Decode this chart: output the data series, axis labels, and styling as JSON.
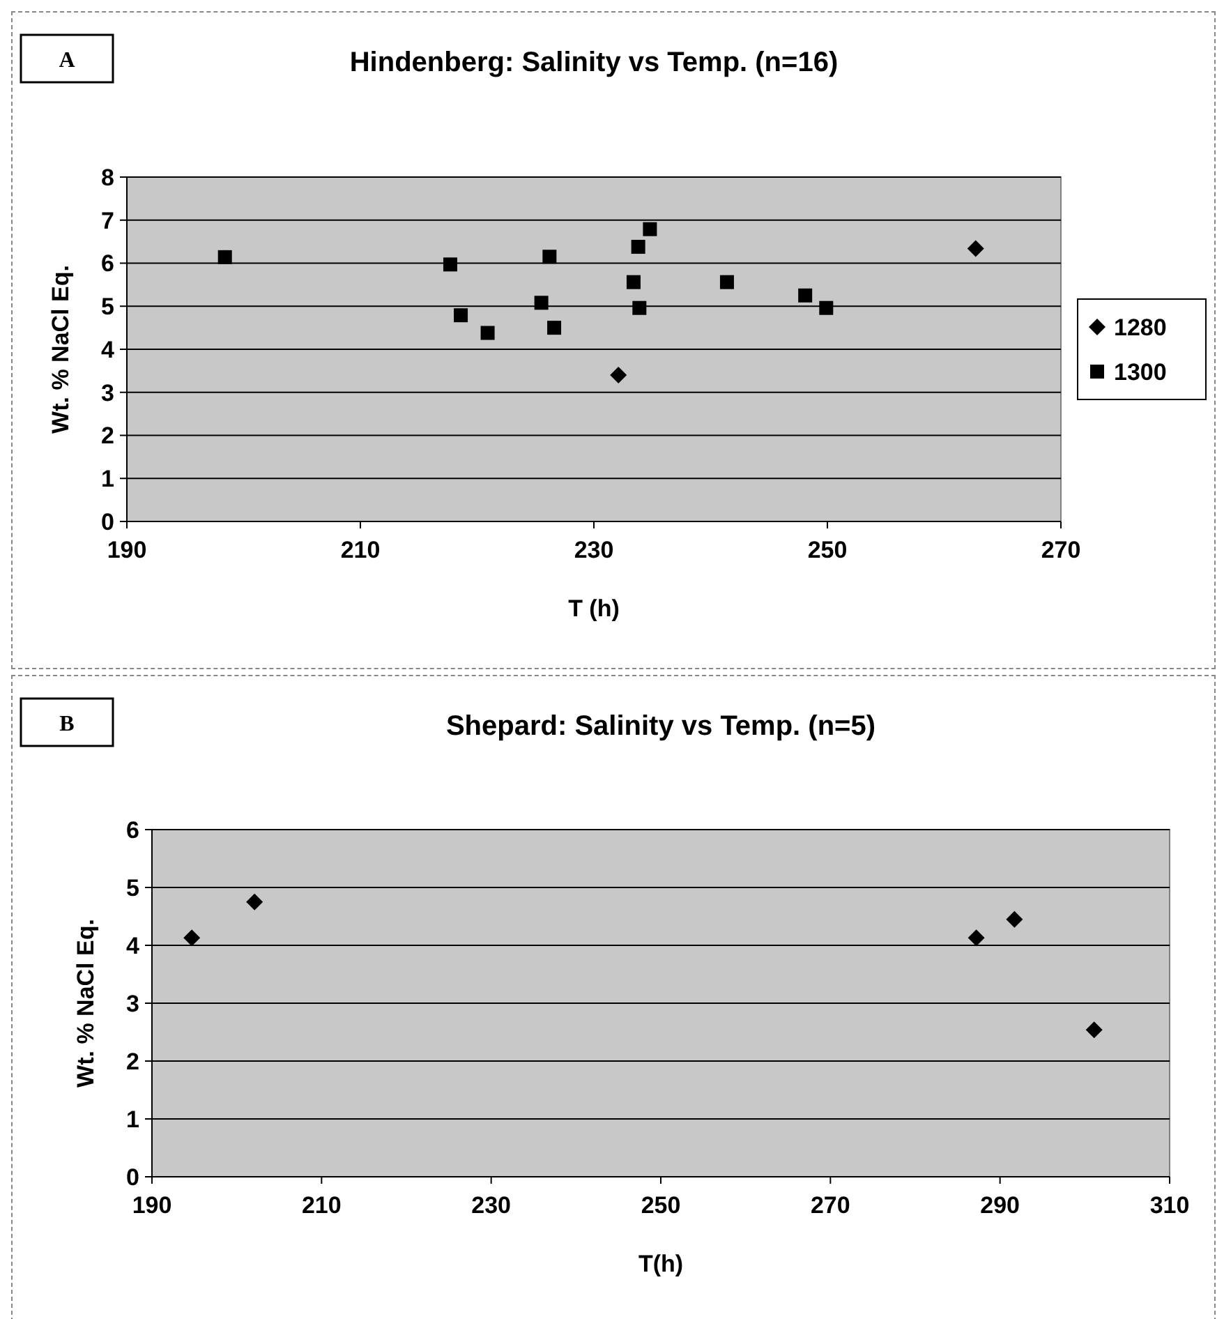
{
  "chart_data": [
    {
      "type": "scatter",
      "title": "Hindenberg: Salinity vs Temp. (n=16)",
      "xlabel": "T (h)",
      "ylabel": "Wt. % NaCl Eq.",
      "annotations": [
        "A"
      ],
      "xlim": [
        190,
        270
      ],
      "xticks": [
        190,
        210,
        230,
        250,
        270
      ],
      "ylim": [
        0,
        8
      ],
      "yticks": [
        0,
        1,
        2,
        3,
        4,
        5,
        6,
        7,
        8
      ],
      "grid": "y",
      "legend": "right",
      "series": [
        {
          "name": "1280",
          "color": "#000000",
          "marker": "diamond",
          "x": [
            232.1,
            262.7
          ],
          "values": [
            3.4,
            6.34
          ]
        },
        {
          "name": "1300",
          "color": "#000000",
          "marker": "square",
          "x": [
            198.4,
            217.7,
            218.6,
            220.9,
            225.5,
            226.2,
            226.6,
            233.4,
            233.8,
            233.9,
            234.8,
            241.4,
            248.1,
            249.9
          ],
          "values": [
            6.14,
            5.97,
            4.79,
            4.38,
            5.08,
            6.15,
            4.5,
            5.56,
            6.38,
            4.96,
            6.79,
            5.56,
            5.25,
            4.96
          ]
        }
      ]
    },
    {
      "type": "scatter",
      "title": "Shepard: Salinity vs Temp. (n=5)",
      "xlabel": "T(h)",
      "ylabel": "Wt. % NaCl Eq.",
      "annotations": [
        "B"
      ],
      "xlim": [
        190,
        310
      ],
      "xticks": [
        190,
        210,
        230,
        250,
        270,
        290,
        310
      ],
      "ylim": [
        0,
        6
      ],
      "yticks": [
        0,
        1,
        2,
        3,
        4,
        5,
        6
      ],
      "grid": "y",
      "legend": false,
      "series": [
        {
          "color": "#000000",
          "marker": "diamond",
          "x": [
            194.7,
            202.1,
            287.2,
            291.7,
            301.1
          ],
          "values": [
            4.13,
            4.75,
            4.13,
            4.45,
            2.54
          ]
        }
      ]
    }
  ]
}
